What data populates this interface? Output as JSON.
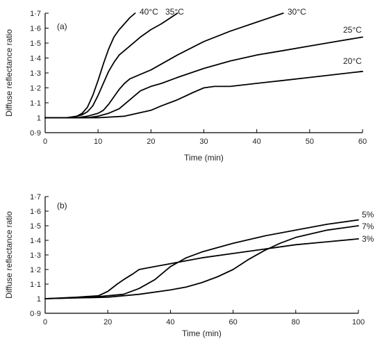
{
  "chart_data": [
    {
      "type": "line",
      "panel_label": "(a)",
      "xlabel": "Time (min)",
      "ylabel": "Diffuse reflectance ratio",
      "xlim": [
        0,
        60
      ],
      "ylim": [
        0.9,
        1.7
      ],
      "xticks": [
        0,
        10,
        20,
        30,
        40,
        50,
        60
      ],
      "yticks": [
        0.9,
        1,
        1.1,
        1.2,
        1.3,
        1.4,
        1.5,
        1.6,
        1.7
      ],
      "ytick_labels": [
        "0·9",
        "1",
        "1·1",
        "1·2",
        "1·3",
        "1·4",
        "1·5",
        "1·6",
        "1·7"
      ],
      "grid": false,
      "series": [
        {
          "name": "40°C",
          "points": [
            [
              0,
              1.0
            ],
            [
              4,
              1.0
            ],
            [
              6,
              1.01
            ],
            [
              7,
              1.03
            ],
            [
              8,
              1.07
            ],
            [
              9,
              1.15
            ],
            [
              10,
              1.25
            ],
            [
              11,
              1.36
            ],
            [
              12,
              1.46
            ],
            [
              13,
              1.54
            ],
            [
              14,
              1.59
            ],
            [
              15,
              1.63
            ],
            [
              16,
              1.67
            ],
            [
              17,
              1.7
            ]
          ]
        },
        {
          "name": "35°C",
          "points": [
            [
              0,
              1.0
            ],
            [
              5,
              1.0
            ],
            [
              7,
              1.02
            ],
            [
              8,
              1.04
            ],
            [
              9,
              1.08
            ],
            [
              10,
              1.15
            ],
            [
              11,
              1.23
            ],
            [
              12,
              1.31
            ],
            [
              13,
              1.37
            ],
            [
              14,
              1.42
            ],
            [
              16,
              1.48
            ],
            [
              18,
              1.54
            ],
            [
              20,
              1.59
            ],
            [
              22,
              1.63
            ],
            [
              25,
              1.7
            ]
          ]
        },
        {
          "name": "30°C",
          "points": [
            [
              0,
              1.0
            ],
            [
              6,
              1.0
            ],
            [
              8,
              1.01
            ],
            [
              10,
              1.03
            ],
            [
              11,
              1.05
            ],
            [
              12,
              1.09
            ],
            [
              13,
              1.14
            ],
            [
              14,
              1.19
            ],
            [
              15,
              1.23
            ],
            [
              16,
              1.26
            ],
            [
              18,
              1.29
            ],
            [
              20,
              1.32
            ],
            [
              25,
              1.42
            ],
            [
              30,
              1.51
            ],
            [
              35,
              1.58
            ],
            [
              40,
              1.64
            ],
            [
              45,
              1.7
            ]
          ]
        },
        {
          "name": "25°C",
          "points": [
            [
              0,
              1.0
            ],
            [
              8,
              1.0
            ],
            [
              10,
              1.01
            ],
            [
              12,
              1.03
            ],
            [
              14,
              1.06
            ],
            [
              16,
              1.12
            ],
            [
              18,
              1.18
            ],
            [
              20,
              1.21
            ],
            [
              22,
              1.23
            ],
            [
              25,
              1.27
            ],
            [
              30,
              1.33
            ],
            [
              35,
              1.38
            ],
            [
              40,
              1.42
            ],
            [
              45,
              1.45
            ],
            [
              50,
              1.48
            ],
            [
              55,
              1.51
            ],
            [
              60,
              1.54
            ]
          ]
        },
        {
          "name": "20°C",
          "points": [
            [
              0,
              1.0
            ],
            [
              10,
              1.0
            ],
            [
              15,
              1.01
            ],
            [
              20,
              1.05
            ],
            [
              22,
              1.08
            ],
            [
              25,
              1.12
            ],
            [
              28,
              1.17
            ],
            [
              30,
              1.2
            ],
            [
              32,
              1.21
            ],
            [
              35,
              1.21
            ],
            [
              40,
              1.23
            ],
            [
              45,
              1.25
            ],
            [
              50,
              1.27
            ],
            [
              55,
              1.29
            ],
            [
              60,
              1.31
            ]
          ]
        }
      ]
    },
    {
      "type": "line",
      "panel_label": "(b)",
      "xlabel": "Time (min)",
      "ylabel": "Diffuse reflectance ratio",
      "xlim": [
        0,
        100
      ],
      "ylim": [
        0.9,
        1.7
      ],
      "xticks": [
        0,
        20,
        40,
        60,
        80,
        100
      ],
      "yticks": [
        0.9,
        1,
        1.1,
        1.2,
        1.3,
        1.4,
        1.5,
        1.6,
        1.7
      ],
      "ytick_labels": [
        "0·9",
        "1",
        "1·1",
        "1·2",
        "1·3",
        "1·4",
        "1·5",
        "1·6",
        "1·7"
      ],
      "grid": false,
      "series": [
        {
          "name": "5%",
          "points": [
            [
              0,
              1.0
            ],
            [
              15,
              1.01
            ],
            [
              25,
              1.03
            ],
            [
              30,
              1.07
            ],
            [
              35,
              1.13
            ],
            [
              40,
              1.22
            ],
            [
              45,
              1.28
            ],
            [
              50,
              1.32
            ],
            [
              60,
              1.38
            ],
            [
              70,
              1.43
            ],
            [
              80,
              1.47
            ],
            [
              90,
              1.51
            ],
            [
              100,
              1.54
            ]
          ]
        },
        {
          "name": "7%",
          "points": [
            [
              0,
              1.0
            ],
            [
              20,
              1.01
            ],
            [
              30,
              1.03
            ],
            [
              40,
              1.06
            ],
            [
              45,
              1.08
            ],
            [
              50,
              1.11
            ],
            [
              55,
              1.15
            ],
            [
              60,
              1.2
            ],
            [
              65,
              1.27
            ],
            [
              70,
              1.33
            ],
            [
              75,
              1.38
            ],
            [
              80,
              1.42
            ],
            [
              90,
              1.47
            ],
            [
              100,
              1.5
            ]
          ]
        },
        {
          "name": "3%",
          "points": [
            [
              0,
              1.0
            ],
            [
              10,
              1.01
            ],
            [
              17,
              1.02
            ],
            [
              20,
              1.05
            ],
            [
              23,
              1.1
            ],
            [
              25,
              1.13
            ],
            [
              28,
              1.17
            ],
            [
              30,
              1.2
            ],
            [
              35,
              1.22
            ],
            [
              40,
              1.24
            ],
            [
              50,
              1.28
            ],
            [
              60,
              1.31
            ],
            [
              70,
              1.34
            ],
            [
              80,
              1.37
            ],
            [
              90,
              1.39
            ],
            [
              100,
              1.41
            ]
          ]
        }
      ]
    }
  ]
}
